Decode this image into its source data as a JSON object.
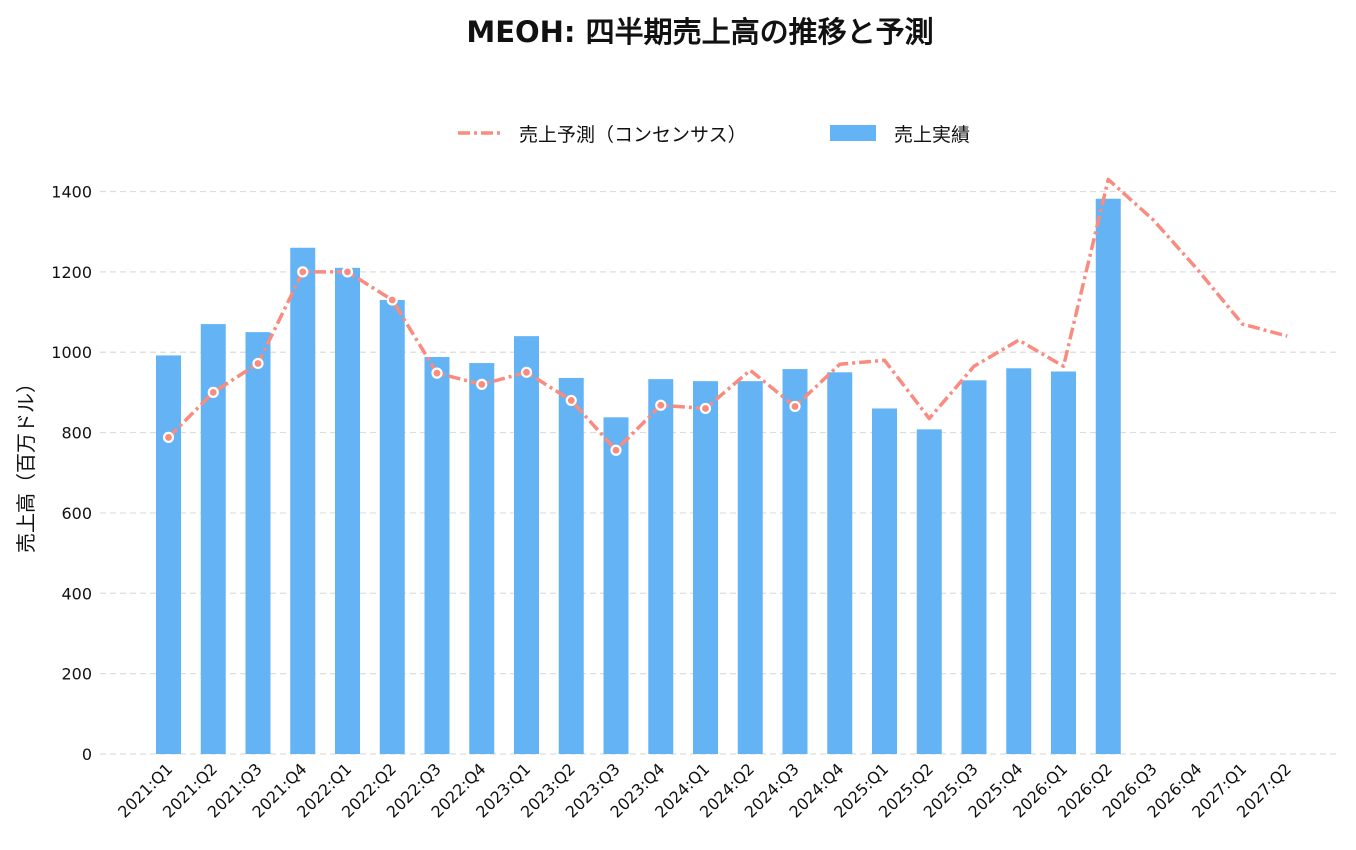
{
  "chart_data": {
    "type": "bar",
    "title": "MEOH: 四半期売上高の推移と予測",
    "ylabel": "売上高（百万ドル）",
    "xlabel": "",
    "ylim": [
      0,
      1450
    ],
    "yticks": [
      0,
      200,
      400,
      600,
      800,
      1000,
      1200,
      1400
    ],
    "grid": true,
    "legend_position": "top-center",
    "categories": [
      "2021:Q1",
      "2021:Q2",
      "2021:Q3",
      "2021:Q4",
      "2022:Q1",
      "2022:Q2",
      "2022:Q3",
      "2022:Q4",
      "2023:Q1",
      "2023:Q2",
      "2023:Q3",
      "2023:Q4",
      "2024:Q1",
      "2024:Q2",
      "2024:Q3",
      "2024:Q4",
      "2025:Q1",
      "2025:Q2",
      "2025:Q3",
      "2025:Q4",
      "2026:Q1",
      "2026:Q2",
      "2026:Q3",
      "2026:Q4",
      "2027:Q1",
      "2027:Q2"
    ],
    "series": [
      {
        "name": "売上予測（コンセンサス）",
        "type": "line",
        "color": "#F98B7F",
        "values": [
          788,
          900,
          972,
          1200,
          1200,
          1130,
          948,
          920,
          950,
          880,
          756,
          868,
          860,
          955,
          865,
          970,
          980,
          835,
          965,
          1030,
          965,
          1430,
          1330,
          1205,
          1070,
          1040
        ],
        "markers": [
          true,
          true,
          true,
          true,
          true,
          true,
          true,
          true,
          true,
          true,
          true,
          true,
          true,
          false,
          true,
          false,
          false,
          false,
          false,
          false,
          false,
          false,
          false,
          false,
          false,
          false
        ]
      },
      {
        "name": "売上実績",
        "type": "bar",
        "color": "#63B3F5",
        "values": [
          992,
          1070,
          1050,
          1260,
          1210,
          1130,
          988,
          973,
          1040,
          936,
          838,
          933,
          928,
          928,
          958,
          950,
          860,
          808,
          930,
          960,
          952,
          1382,
          null,
          null,
          null,
          null
        ]
      }
    ]
  }
}
